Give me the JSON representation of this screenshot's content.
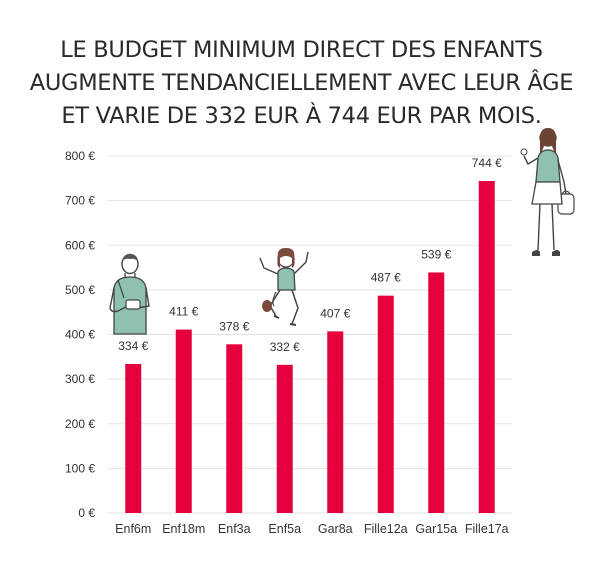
{
  "title_lines": [
    "LE BUDGET MINIMUM DIRECT DES ENFANTS",
    "AUGMENTE TENDANCIELLEMENT AVEC LEUR ÂGE",
    "ET VARIE DE 332 EUR À 744 EUR PAR MOIS."
  ],
  "colors": {
    "bar": "#e5003d",
    "grid": "#e3e3e3",
    "figure_fill": "#8fc1b3"
  },
  "icons": [
    "teen-boy-figure",
    "jumping-child-figure",
    "teen-girl-figure"
  ],
  "chart_data": {
    "type": "bar",
    "title": "LE BUDGET MINIMUM DIRECT DES ENFANTS AUGMENTE TENDANCIELLEMENT AVEC LEUR ÂGE ET VARIE DE 332 EUR À 744 EUR PAR MOIS.",
    "xlabel": "",
    "ylabel": "",
    "categories": [
      "Enf6m",
      "Enf18m",
      "Enf3a",
      "Enf5a",
      "Gar8a",
      "Fille12a",
      "Gar15a",
      "Fille17a"
    ],
    "values": [
      334,
      411,
      378,
      332,
      407,
      487,
      539,
      744
    ],
    "value_labels": [
      "334 €",
      "411 €",
      "378 €",
      "332 €",
      "407 €",
      "487 €",
      "539 €",
      "744 €"
    ],
    "ylim": [
      0,
      800
    ],
    "yticks": [
      0,
      100,
      200,
      300,
      400,
      500,
      600,
      700,
      800
    ],
    "ytick_labels": [
      "0 €",
      "100 €",
      "200 €",
      "300 €",
      "400 €",
      "500 €",
      "600 €",
      "700 €",
      "800 €"
    ],
    "grid": true,
    "legend": "none"
  }
}
